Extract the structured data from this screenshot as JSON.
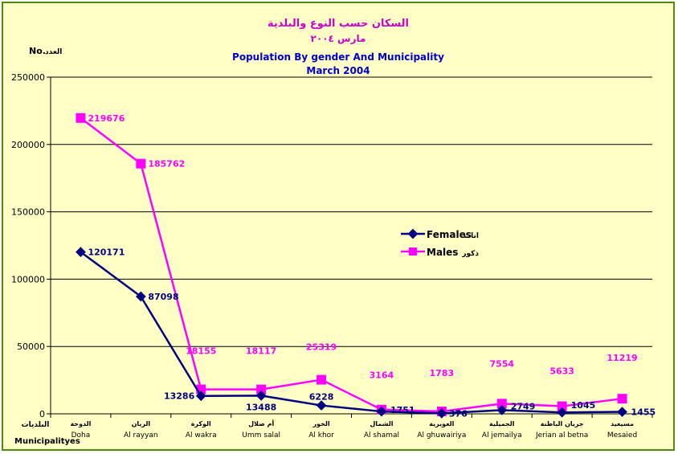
{
  "chart_data": {
    "type": "line",
    "title_ar": "السكان حسب النوع والبلدية",
    "subtitle_ar": "مارس ٢٠٠٤",
    "title": "Population By gender And Municipality",
    "subtitle": "March 2004",
    "ylabel": "No.",
    "ylabel_ar": "العدد",
    "xlabel": "Municipalityes",
    "xlabel_ar": "البلديات",
    "ylim": [
      0,
      250000
    ],
    "yticks": [
      "0",
      "50000",
      "100000",
      "150000",
      "200000",
      "250000"
    ],
    "grid": true,
    "legend_position": "center-right",
    "categories": [
      {
        "ar": "الدوحة",
        "en": "Doha"
      },
      {
        "ar": "الريان",
        "en": "Al rayyan"
      },
      {
        "ar": "الوكرة",
        "en": "Al wakra"
      },
      {
        "ar": "أم صلال",
        "en": "Umm salal"
      },
      {
        "ar": "الخور",
        "en": "Al khor"
      },
      {
        "ar": "الشمال",
        "en": "Al shamal"
      },
      {
        "ar": "الغويرية",
        "en": "Al ghuwairiya"
      },
      {
        "ar": "الجميلية",
        "en": "Al jemailya"
      },
      {
        "ar": "جريان الباطنة",
        "en": "Jerian al betna"
      },
      {
        "ar": "مسيعيد",
        "en": "Mesaied"
      }
    ],
    "series": [
      {
        "name": "Females",
        "name_ar": "اناث",
        "color": "#000080",
        "marker": "diamond",
        "values": [
          120171,
          87098,
          13286,
          13488,
          6228,
          1751,
          376,
          2749,
          1045,
          1455
        ]
      },
      {
        "name": "Males",
        "name_ar": "ذكور",
        "color": "#ff00ff",
        "marker": "square",
        "values": [
          219676,
          185762,
          18155,
          18117,
          25319,
          3164,
          1783,
          7554,
          5633,
          11219
        ]
      }
    ]
  }
}
